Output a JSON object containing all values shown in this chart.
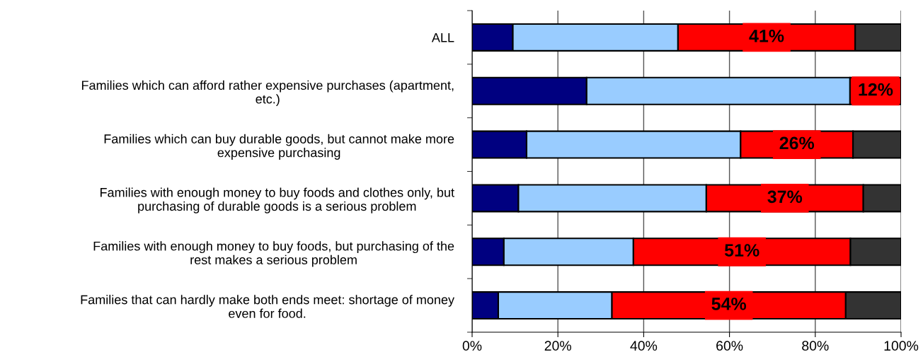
{
  "chart_data": {
    "type": "bar",
    "orientation": "horizontal",
    "stacked": true,
    "categories": [
      "ALL",
      "Families which can afford rather expensive purchases (apartment,\netc.)",
      "Families which can buy durable goods, but cannot make more\nexpensive purchasing",
      "Families with enough money to buy foods and clothes only, but\npurchasing of durable goods is a serious problem",
      "Families with enough money to buy foods, but purchasing of the\nrest makes a serious problem",
      "Families that can hardly make both ends meet: shortage of money\neven for food."
    ],
    "series": [
      {
        "color": "#000080",
        "values": [
          9.5,
          26.7,
          12.7,
          10.8,
          7.4,
          6.1
        ]
      },
      {
        "color": "#99ccff",
        "values": [
          38.5,
          61.4,
          49.9,
          43.8,
          30.2,
          26.5
        ]
      },
      {
        "color": "#ff0000",
        "values": [
          41.3,
          11.9,
          26.2,
          36.6,
          50.6,
          54.5
        ],
        "value_labels": [
          "41%",
          "12%",
          "26%",
          "37%",
          "51%",
          "54%"
        ]
      },
      {
        "color": "#333333",
        "values": [
          10.7,
          null,
          11.2,
          8.8,
          11.8,
          12.9
        ]
      }
    ],
    "xlim": [
      0,
      100
    ],
    "xticks": [
      {
        "value": 0,
        "label": "0%"
      },
      {
        "value": 20,
        "label": "20%"
      },
      {
        "value": 40,
        "label": "40%"
      },
      {
        "value": 60,
        "label": "60%"
      },
      {
        "value": 80,
        "label": "80%"
      },
      {
        "value": 100,
        "label": "100%"
      }
    ],
    "grid": "x",
    "legend": false
  }
}
